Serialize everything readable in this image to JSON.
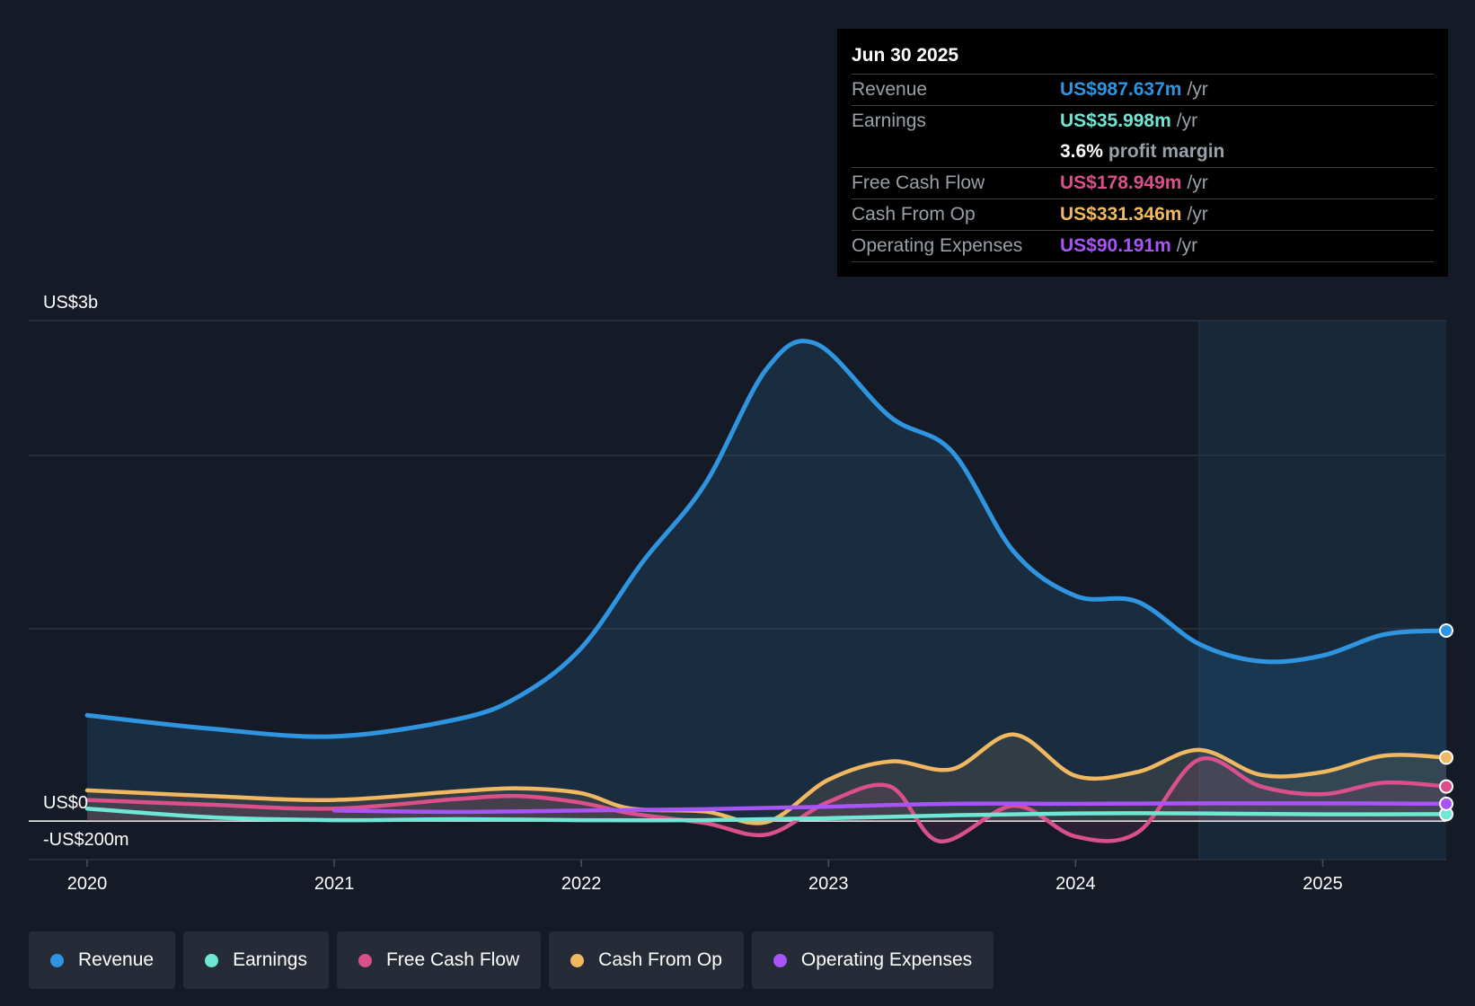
{
  "tooltip": {
    "date": "Jun 30 2025",
    "rows": [
      {
        "label": "Revenue",
        "value": "US$987.637m",
        "unit": "/yr",
        "color": "#2f95e0"
      },
      {
        "label": "Earnings",
        "value": "US$35.998m",
        "unit": "/yr",
        "color": "#6ee7d5"
      },
      {
        "label": "",
        "value": "3.6%",
        "unit": "profit margin",
        "color": "#ffffff"
      },
      {
        "label": "Free Cash Flow",
        "value": "US$178.949m",
        "unit": "/yr",
        "color": "#d9508a"
      },
      {
        "label": "Cash From Op",
        "value": "US$331.346m",
        "unit": "/yr",
        "color": "#f0b860"
      },
      {
        "label": "Operating Expenses",
        "value": "US$90.191m",
        "unit": "/yr",
        "color": "#a855f7"
      }
    ]
  },
  "legend": [
    {
      "label": "Revenue",
      "color": "#2f95e0"
    },
    {
      "label": "Earnings",
      "color": "#6ee7d5"
    },
    {
      "label": "Free Cash Flow",
      "color": "#d9508a"
    },
    {
      "label": "Cash From Op",
      "color": "#f0b860"
    },
    {
      "label": "Operating Expenses",
      "color": "#a855f7"
    }
  ],
  "chart_data": {
    "type": "line",
    "y_unit": "US$ millions",
    "ylim": [
      -200,
      2600
    ],
    "y_tick_labels": [
      {
        "value": 2600,
        "label": "US$3b"
      },
      {
        "value": 0,
        "label": "US$0"
      },
      {
        "value": -200,
        "label": "-US$200m"
      }
    ],
    "xlim": [
      2020.0,
      2025.5
    ],
    "x_ticks": [
      2020,
      2021,
      2022,
      2023,
      2024,
      2025
    ],
    "grid": true,
    "highlight_after": 2024.5,
    "series": [
      {
        "name": "Revenue",
        "color": "#2f95e0",
        "area": true,
        "points": [
          [
            2020.0,
            550
          ],
          [
            2020.5,
            480
          ],
          [
            2021.0,
            440
          ],
          [
            2021.5,
            530
          ],
          [
            2021.75,
            650
          ],
          [
            2022.0,
            900
          ],
          [
            2022.25,
            1350
          ],
          [
            2022.5,
            1750
          ],
          [
            2022.75,
            2350
          ],
          [
            2022.95,
            2480
          ],
          [
            2023.25,
            2100
          ],
          [
            2023.5,
            1920
          ],
          [
            2023.75,
            1400
          ],
          [
            2024.0,
            1170
          ],
          [
            2024.25,
            1140
          ],
          [
            2024.5,
            920
          ],
          [
            2024.75,
            830
          ],
          [
            2025.0,
            860
          ],
          [
            2025.25,
            970
          ],
          [
            2025.5,
            990
          ]
        ]
      },
      {
        "name": "Cash From Op",
        "color": "#f0b860",
        "area": true,
        "points": [
          [
            2020.0,
            160
          ],
          [
            2020.5,
            130
          ],
          [
            2021.0,
            110
          ],
          [
            2021.5,
            155
          ],
          [
            2021.75,
            170
          ],
          [
            2022.0,
            145
          ],
          [
            2022.2,
            65
          ],
          [
            2022.5,
            50
          ],
          [
            2022.75,
            -5
          ],
          [
            2023.0,
            215
          ],
          [
            2023.25,
            310
          ],
          [
            2023.5,
            270
          ],
          [
            2023.75,
            450
          ],
          [
            2024.0,
            235
          ],
          [
            2024.25,
            255
          ],
          [
            2024.5,
            370
          ],
          [
            2024.75,
            240
          ],
          [
            2025.0,
            255
          ],
          [
            2025.25,
            340
          ],
          [
            2025.5,
            330
          ]
        ]
      },
      {
        "name": "Free Cash Flow",
        "color": "#d9508a",
        "area": true,
        "points": [
          [
            2020.0,
            110
          ],
          [
            2020.5,
            85
          ],
          [
            2021.0,
            65
          ],
          [
            2021.5,
            115
          ],
          [
            2021.75,
            130
          ],
          [
            2022.0,
            95
          ],
          [
            2022.2,
            40
          ],
          [
            2022.5,
            -10
          ],
          [
            2022.75,
            -70
          ],
          [
            2023.0,
            100
          ],
          [
            2023.25,
            180
          ],
          [
            2023.45,
            -105
          ],
          [
            2023.75,
            80
          ],
          [
            2024.0,
            -80
          ],
          [
            2024.25,
            -60
          ],
          [
            2024.5,
            320
          ],
          [
            2024.75,
            180
          ],
          [
            2025.0,
            140
          ],
          [
            2025.25,
            200
          ],
          [
            2025.5,
            180
          ]
        ]
      },
      {
        "name": "Earnings",
        "color": "#6ee7d5",
        "area": false,
        "points": [
          [
            2020.0,
            65
          ],
          [
            2020.5,
            20
          ],
          [
            2021.0,
            5
          ],
          [
            2021.5,
            10
          ],
          [
            2022.0,
            5
          ],
          [
            2022.5,
            5
          ],
          [
            2023.0,
            15
          ],
          [
            2023.5,
            30
          ],
          [
            2024.0,
            40
          ],
          [
            2024.5,
            40
          ],
          [
            2025.0,
            35
          ],
          [
            2025.5,
            36
          ]
        ]
      },
      {
        "name": "Operating Expenses",
        "color": "#a855f7",
        "area": false,
        "points": [
          [
            2021.0,
            55
          ],
          [
            2021.5,
            48
          ],
          [
            2022.0,
            55
          ],
          [
            2022.5,
            62
          ],
          [
            2023.0,
            75
          ],
          [
            2023.5,
            90
          ],
          [
            2024.0,
            90
          ],
          [
            2024.5,
            92
          ],
          [
            2025.0,
            92
          ],
          [
            2025.5,
            90
          ]
        ]
      }
    ]
  }
}
